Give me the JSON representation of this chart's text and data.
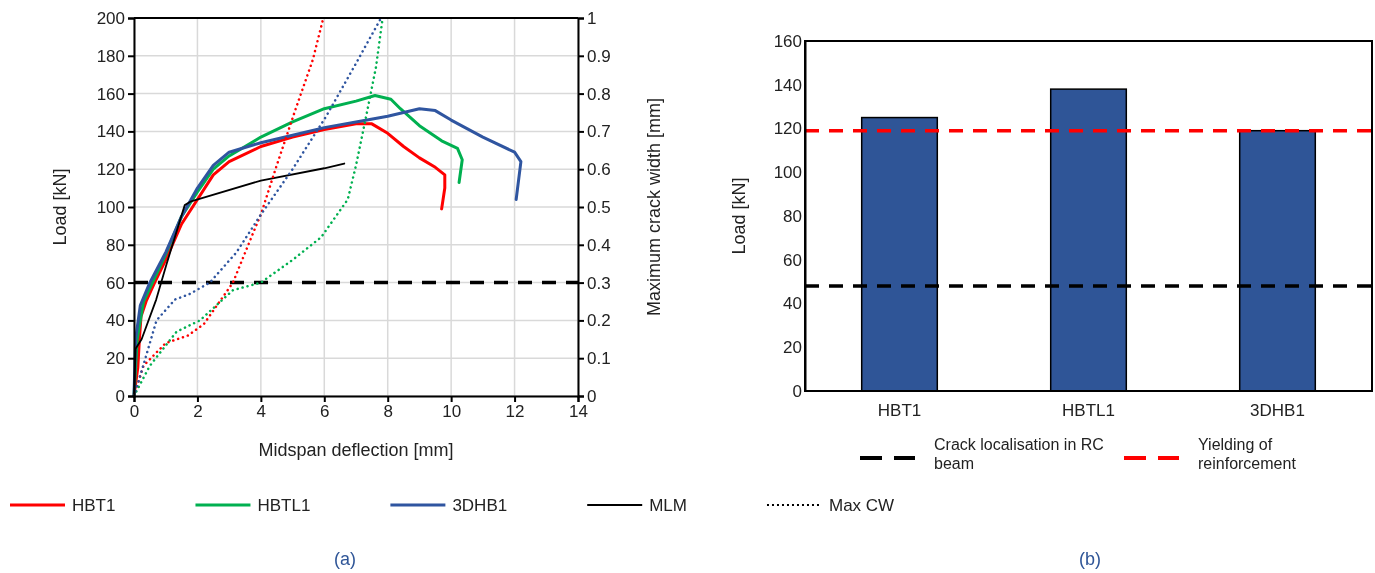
{
  "chart_data": [
    {
      "type": "line",
      "title": "(a)",
      "xlabel": "Midspan deflection [mm]",
      "ylabel": "Load [kN]",
      "y2label": "Maximum crack width [mm]",
      "xlim": [
        0,
        14
      ],
      "xticks": [
        0,
        2,
        4,
        6,
        8,
        10,
        12,
        14
      ],
      "ylim": [
        0,
        200
      ],
      "yticks": [
        0,
        20,
        40,
        60,
        80,
        100,
        120,
        140,
        160,
        180,
        200
      ],
      "y2lim": [
        0,
        1
      ],
      "y2ticks": [
        0,
        0.1,
        0.2,
        0.3,
        0.4,
        0.5,
        0.6,
        0.7,
        0.8,
        0.9,
        1
      ],
      "grid": true,
      "legend": "bottom",
      "annotations": [
        "Max CW"
      ],
      "ref_lines": [
        {
          "axis": "y",
          "value": 60,
          "color": "#000000",
          "line_style": "dashed"
        }
      ],
      "series": [
        {
          "name": "HBT1",
          "color": "#ff0000",
          "line_style": "solid",
          "x": [
            0,
            0.12,
            0.17,
            0.22,
            0.38,
            0.65,
            1.0,
            1.5,
            2.0,
            2.5,
            3,
            4,
            5,
            6,
            7,
            7.5,
            8,
            8.5,
            9,
            9.5,
            9.8,
            9.8,
            9.7
          ],
          "values": [
            0,
            15,
            30,
            42,
            50,
            60,
            72,
            91,
            104,
            117,
            124,
            132,
            137,
            141,
            144,
            144,
            139,
            132,
            126,
            121,
            117,
            110,
            99
          ]
        },
        {
          "name": "HBTL1",
          "color": "#00b050",
          "line_style": "solid",
          "x": [
            0,
            0.1,
            0.3,
            1,
            1.5,
            2,
            2.5,
            3,
            4,
            5,
            6,
            7,
            7.6,
            8.1,
            8.4,
            9,
            9.7,
            10.2,
            10.35,
            10.25
          ],
          "values": [
            0,
            30,
            50,
            75,
            95,
            108,
            120,
            127,
            137,
            145,
            152,
            156,
            159,
            157,
            152,
            143,
            135,
            131,
            125,
            113
          ]
        },
        {
          "name": "3DHB1",
          "color": "#2f55a0",
          "line_style": "solid",
          "x": [
            0,
            0.05,
            0.2,
            0.5,
            1,
            1.5,
            2,
            2.5,
            3,
            4,
            5,
            6,
            7,
            8,
            9,
            9.5,
            10,
            11,
            12,
            12.2,
            12.05
          ],
          "values": [
            0,
            30,
            48,
            60,
            76,
            95,
            110,
            122,
            129,
            134,
            138,
            142,
            145,
            148,
            152,
            151,
            146,
            137,
            129,
            124,
            104
          ]
        },
        {
          "name": "MLM",
          "color": "#000000",
          "line_style": "solid",
          "x": [
            0,
            0.05,
            0.24,
            0.7,
            1.03,
            1.6,
            1.8,
            4,
            6,
            6.63
          ],
          "values": [
            0,
            25,
            30,
            51,
            70,
            101,
            103,
            114,
            120.5,
            123
          ]
        },
        {
          "color": "#ff0000",
          "line_style": "dotted",
          "axis": "y2",
          "x": [
            0,
            0.3,
            1.0,
            1.7,
            2.2,
            3.12,
            3.75,
            4,
            4.5,
            5.1,
            5.64,
            5.97
          ],
          "values": [
            0,
            0.08,
            0.14,
            0.16,
            0.19,
            0.3,
            0.43,
            0.48,
            0.61,
            0.76,
            0.89,
            1.0
          ]
        },
        {
          "color": "#00b050",
          "line_style": "dotted",
          "axis": "y2",
          "x": [
            0,
            0.5,
            1.34,
            2.08,
            3.12,
            4,
            5,
            5.9,
            6.74,
            7,
            7.32,
            7.63,
            7.84
          ],
          "values": [
            0,
            0.08,
            0.17,
            0.2,
            0.28,
            0.3,
            0.36,
            0.42,
            0.52,
            0.61,
            0.74,
            0.87,
            1.0
          ]
        },
        {
          "color": "#2f55a0",
          "line_style": "dotted",
          "axis": "y2",
          "x": [
            0,
            0.29,
            0.71,
            1.29,
            1.76,
            2.39,
            3.23,
            4,
            5,
            6.06,
            7,
            7.79
          ],
          "values": [
            0,
            0.08,
            0.2,
            0.255,
            0.27,
            0.3,
            0.38,
            0.48,
            0.6,
            0.74,
            0.88,
            1.0
          ]
        }
      ]
    },
    {
      "type": "bar",
      "title": "(b)",
      "categories": [
        "HBT1",
        "HBTL1",
        "3DHB1"
      ],
      "values": [
        125,
        138,
        119
      ],
      "color": "#2f5597",
      "ylabel": "Load [kN]",
      "ylim": [
        0,
        160
      ],
      "yticks": [
        0,
        20,
        40,
        60,
        80,
        100,
        120,
        140,
        160
      ],
      "legend": "bottom",
      "ref_lines": [
        {
          "axis": "y",
          "value": 48,
          "label": "Crack localisation in RC beam",
          "color": "#000000",
          "line_style": "dashed"
        },
        {
          "axis": "y",
          "value": 119,
          "label": "Yielding of reinforcement",
          "color": "#ff0000",
          "line_style": "dashed"
        }
      ]
    }
  ]
}
